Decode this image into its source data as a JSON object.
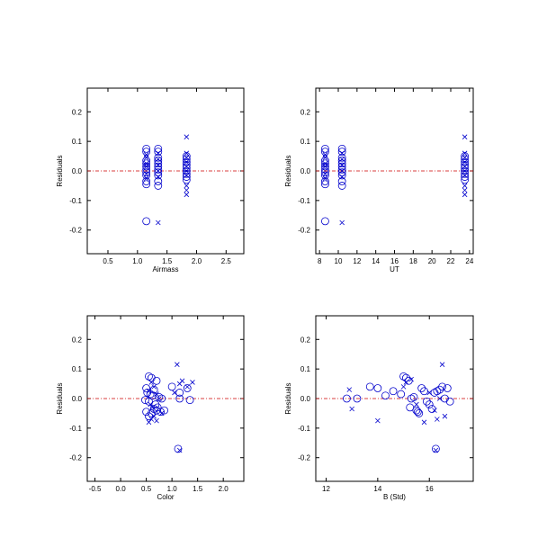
{
  "colors": {
    "marker": "#0000cc",
    "zero_line": "#cc0000",
    "axes": "#000000"
  },
  "chart_data": [
    {
      "type": "scatter",
      "xlabel": "Airmass",
      "ylabel": "Residuals",
      "xlim": [
        0.15,
        2.8
      ],
      "ylim": [
        -0.28,
        0.28
      ],
      "xticks": [
        0.5,
        1.0,
        1.5,
        2.0,
        2.5
      ],
      "xtick_labels": [
        "0.5",
        "1.0",
        "1.5",
        "2.0",
        "2.5"
      ],
      "yticks": [
        -0.2,
        -0.1,
        0.0,
        0.1,
        0.2
      ],
      "ytick_labels": [
        "-0.2",
        "-0.1",
        "0.0",
        "0.1",
        "0.2"
      ],
      "reference_line_y": 0,
      "series": [
        {
          "marker": "circle",
          "x": [
            1.15,
            1.15,
            1.15,
            1.15,
            1.15,
            1.15,
            1.15,
            1.15,
            1.15,
            1.15,
            1.15,
            1.35,
            1.35,
            1.35,
            1.35,
            1.35,
            1.35,
            1.35,
            1.35,
            1.35,
            1.35,
            1.35,
            1.83,
            1.83,
            1.83,
            1.83,
            1.83,
            1.83,
            1.83,
            1.83,
            1.83
          ],
          "y": [
            0.075,
            0.065,
            0.035,
            0.025,
            0.015,
            0.005,
            -0.005,
            -0.015,
            -0.035,
            -0.045,
            -0.17,
            0.075,
            0.065,
            0.045,
            0.035,
            0.025,
            0.015,
            0.005,
            -0.005,
            -0.015,
            -0.035,
            -0.05,
            0.05,
            0.04,
            0.03,
            0.02,
            0.01,
            0.0,
            -0.01,
            -0.02,
            -0.03
          ]
        },
        {
          "marker": "cross",
          "x": [
            1.15,
            1.15,
            1.15,
            1.15,
            1.15,
            1.15,
            1.35,
            1.35,
            1.35,
            1.35,
            1.35,
            1.35,
            1.83,
            1.83,
            1.83,
            1.83,
            1.83,
            1.83,
            1.83,
            1.83,
            1.83,
            1.83
          ],
          "y": [
            0.055,
            0.045,
            0.025,
            0.015,
            -0.01,
            -0.025,
            0.06,
            0.04,
            0.02,
            0.0,
            -0.02,
            -0.175,
            0.115,
            0.06,
            0.045,
            0.03,
            0.015,
            0.0,
            -0.015,
            -0.05,
            -0.065,
            -0.08
          ]
        }
      ]
    },
    {
      "type": "scatter",
      "xlabel": "UT",
      "ylabel": "Residuals",
      "xlim": [
        7.6,
        24.4
      ],
      "ylim": [
        -0.28,
        0.28
      ],
      "xticks": [
        8,
        10,
        12,
        14,
        16,
        18,
        20,
        22,
        24
      ],
      "xtick_labels": [
        "8",
        "10",
        "12",
        "14",
        "16",
        "18",
        "20",
        "22",
        "24"
      ],
      "yticks": [
        -0.2,
        -0.1,
        0.0,
        0.1,
        0.2
      ],
      "ytick_labels": [
        "-0.2",
        "-0.1",
        "0.0",
        "0.1",
        "0.2"
      ],
      "reference_line_y": 0,
      "series": [
        {
          "marker": "circle",
          "x": [
            8.6,
            8.6,
            8.6,
            8.6,
            8.6,
            8.6,
            8.6,
            8.6,
            8.6,
            8.6,
            8.6,
            10.4,
            10.4,
            10.4,
            10.4,
            10.4,
            10.4,
            10.4,
            10.4,
            10.4,
            10.4,
            10.4,
            23.5,
            23.5,
            23.5,
            23.5,
            23.5,
            23.5,
            23.5,
            23.5,
            23.5
          ],
          "y": [
            0.075,
            0.065,
            0.035,
            0.025,
            0.015,
            0.005,
            -0.005,
            -0.015,
            -0.035,
            -0.045,
            -0.17,
            0.075,
            0.065,
            0.045,
            0.035,
            0.025,
            0.015,
            0.005,
            -0.005,
            -0.015,
            -0.035,
            -0.05,
            0.05,
            0.04,
            0.03,
            0.02,
            0.01,
            0.0,
            -0.01,
            -0.02,
            -0.03
          ]
        },
        {
          "marker": "cross",
          "x": [
            8.6,
            8.6,
            8.6,
            8.6,
            8.6,
            8.6,
            10.4,
            10.4,
            10.4,
            10.4,
            10.4,
            10.4,
            23.5,
            23.5,
            23.5,
            23.5,
            23.5,
            23.5,
            23.5,
            23.5,
            23.5,
            23.5
          ],
          "y": [
            0.055,
            0.045,
            0.025,
            0.015,
            -0.01,
            -0.025,
            0.06,
            0.04,
            0.02,
            0.0,
            -0.02,
            -0.175,
            0.115,
            0.06,
            0.045,
            0.03,
            0.015,
            0.0,
            -0.015,
            -0.05,
            -0.065,
            -0.08
          ]
        }
      ]
    },
    {
      "type": "scatter",
      "xlabel": "Color",
      "ylabel": "Residuals",
      "xlim": [
        -0.65,
        2.4
      ],
      "ylim": [
        -0.28,
        0.28
      ],
      "xticks": [
        -0.5,
        0.0,
        0.5,
        1.0,
        1.5,
        2.0
      ],
      "xtick_labels": [
        "-0.5",
        "0.0",
        "0.5",
        "1.0",
        "1.5",
        "2.0"
      ],
      "yticks": [
        -0.2,
        -0.1,
        0.0,
        0.1,
        0.2
      ],
      "ytick_labels": [
        "-0.2",
        "-0.1",
        "0.0",
        "0.1",
        "0.2"
      ],
      "reference_line_y": 0,
      "series": [
        {
          "marker": "circle",
          "x": [
            0.55,
            0.6,
            0.5,
            0.65,
            0.7,
            0.52,
            0.58,
            0.62,
            0.75,
            0.8,
            0.48,
            0.55,
            0.68,
            0.72,
            0.85,
            1.0,
            1.15,
            1.15,
            1.3,
            1.35,
            0.5,
            0.6,
            0.7,
            0.65,
            0.55,
            0.78,
            1.12
          ],
          "y": [
            0.075,
            0.07,
            0.035,
            0.03,
            0.06,
            0.02,
            0.015,
            0.01,
            0.005,
            0.0,
            -0.005,
            -0.01,
            -0.02,
            -0.03,
            -0.04,
            0.04,
            0.02,
            0.0,
            0.035,
            -0.005,
            -0.045,
            -0.05,
            -0.04,
            -0.035,
            -0.06,
            -0.045,
            -0.17
          ]
        },
        {
          "marker": "cross",
          "x": [
            0.6,
            0.65,
            0.55,
            0.7,
            0.75,
            0.58,
            0.62,
            0.8,
            1.1,
            1.15,
            1.2,
            1.4,
            1.3,
            0.65,
            0.55,
            0.6,
            0.7,
            1.15,
            1.05
          ],
          "y": [
            0.055,
            0.04,
            0.025,
            0.015,
            0.0,
            -0.02,
            -0.03,
            -0.05,
            0.115,
            0.05,
            0.06,
            0.055,
            0.04,
            -0.06,
            -0.08,
            -0.07,
            -0.075,
            -0.175,
            0.02
          ]
        }
      ]
    },
    {
      "type": "scatter",
      "xlabel": "B (Std)",
      "ylabel": "Residuals",
      "xlim": [
        11.6,
        17.7
      ],
      "ylim": [
        -0.28,
        0.28
      ],
      "xticks": [
        12,
        14,
        16
      ],
      "xtick_labels": [
        "12",
        "14",
        "16"
      ],
      "yticks": [
        -0.2,
        -0.1,
        0.0,
        0.1,
        0.2
      ],
      "ytick_labels": [
        "-0.2",
        "-0.1",
        "0.0",
        "0.1",
        "0.2"
      ],
      "reference_line_y": 0,
      "series": [
        {
          "marker": "circle",
          "x": [
            12.8,
            13.2,
            13.7,
            14.0,
            14.3,
            14.6,
            15.0,
            15.1,
            15.2,
            15.3,
            15.25,
            15.4,
            15.5,
            15.6,
            15.7,
            15.8,
            15.9,
            16.0,
            16.1,
            16.2,
            16.3,
            16.4,
            16.5,
            16.6,
            16.7,
            16.8,
            16.25,
            15.55,
            14.9
          ],
          "y": [
            0.0,
            0.0,
            0.04,
            0.035,
            0.01,
            0.025,
            0.075,
            0.07,
            0.06,
            0.0,
            -0.03,
            0.005,
            -0.04,
            -0.05,
            0.035,
            0.025,
            -0.01,
            -0.02,
            -0.035,
            0.02,
            0.025,
            0.03,
            0.04,
            0.0,
            0.035,
            -0.01,
            -0.17,
            -0.045,
            0.015
          ]
        },
        {
          "marker": "cross",
          "x": [
            12.9,
            13.0,
            14.0,
            15.1,
            15.3,
            15.5,
            15.8,
            16.0,
            16.2,
            16.3,
            16.5,
            16.6,
            16.4,
            16.25,
            15.0
          ],
          "y": [
            0.03,
            -0.035,
            -0.075,
            0.055,
            0.065,
            -0.02,
            -0.08,
            0.02,
            -0.04,
            -0.07,
            0.115,
            -0.06,
            0.0,
            -0.175,
            0.04
          ]
        }
      ]
    }
  ]
}
